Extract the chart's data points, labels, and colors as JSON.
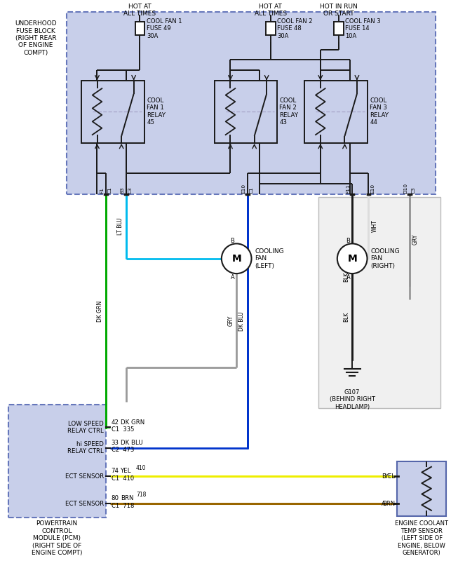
{
  "bg_color": "#ffffff",
  "fuse_block_bg": "#c8cfea",
  "pcm_bg": "#c8cfea",
  "dashed_border_color": "#6677bb",
  "line_black": "#1a1a1a",
  "line_green": "#00aa00",
  "line_lt_blue": "#00bbee",
  "line_dk_blue": "#0033cc",
  "line_yellow": "#eeee00",
  "line_brown": "#996600",
  "line_gray": "#999999",
  "line_white": "#dddddd",
  "relay_labels": [
    "COOL\nFAN 1\nRELAY\n45",
    "COOL\nFAN 2\nRELAY\n43",
    "COOL\nFAN 3\nRELAY\n44"
  ],
  "fuse_labels": [
    "COOL FAN 1\nFUSE 49\n30A",
    "COOL FAN 2\nFUSE 48\n30A",
    "COOL FAN 3\nFUSE 14\n10A"
  ],
  "hot_labels": [
    "HOT AT\nALL TIMES",
    "HOT AT\nALL TIMES",
    "HOT IN RUN\nOR START"
  ],
  "pcm_pins": [
    {
      "pin": "42",
      "wire": "DK GRN",
      "label": "LOW SPEED\nRELAY CTRL",
      "conn": "C1",
      "ckt": "335"
    },
    {
      "pin": "33",
      "wire": "DK BLU",
      "label": "hi SPEED\nRELAY CTRL",
      "conn": "C2",
      "ckt": "473"
    },
    {
      "pin": "74",
      "wire": "YEL",
      "label": "ECT SENSOR",
      "conn": "C1",
      "ckt": "410"
    },
    {
      "pin": "80",
      "wire": "BRN",
      "label": "ECT SENSOR",
      "conn": "C1",
      "ckt": "718"
    }
  ],
  "pcm_label": "POWERTRAIN\nCONTROL\nMODULE (PCM)\n(RIGHT SIDE OF\nENGINE COMPT)",
  "underhood_label": "UNDERHOOD\nFUSE BLOCK\n(RIGHT REAR\nOF ENGINE\nCOMPT)",
  "ect_label": "ENGINE COOLANT\nTEMP SENSOR\n(LEFT SIDE OF\nENGINE, BELOW\nGENERATOR)"
}
